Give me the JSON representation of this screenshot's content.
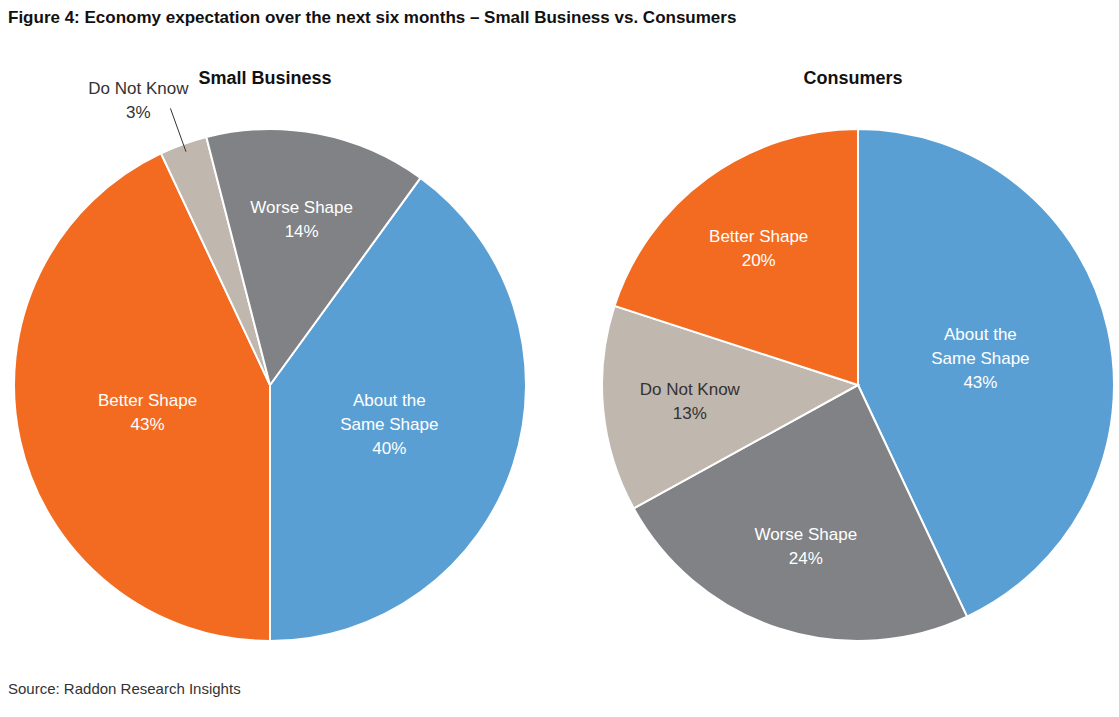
{
  "title": "Figure 4: Economy expectation over the next six months – Small Business vs. Consumers",
  "source": "Source: Raddon Research Insights",
  "chart_data": [
    {
      "type": "pie",
      "title": "Small Business",
      "categories": [
        "About the Same Shape",
        "Better Shape",
        "Do Not Know",
        "Worse Shape"
      ],
      "values": [
        40,
        43,
        3,
        14
      ],
      "value_labels": [
        "40%",
        "43%",
        "3%",
        "14%"
      ],
      "colors": [
        "#5a9fd4",
        "#f26b21",
        "#c0b7ae",
        "#808285"
      ],
      "data_labels": true
    },
    {
      "type": "pie",
      "title": "Consumers",
      "categories": [
        "About the Same Shape",
        "Worse Shape",
        "Do Not Know",
        "Better Shape"
      ],
      "values": [
        43,
        24,
        13,
        20
      ],
      "value_labels": [
        "43%",
        "24%",
        "13%",
        "20%"
      ],
      "colors": [
        "#5a9fd4",
        "#808285",
        "#c0b7ae",
        "#f26b21"
      ],
      "data_labels": true
    }
  ]
}
